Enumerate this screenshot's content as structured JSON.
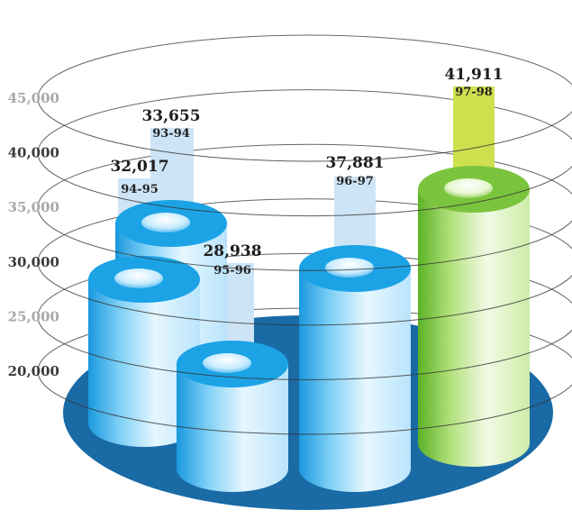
{
  "chart_data": {
    "type": "bar",
    "categories": [
      "93-94",
      "94-95",
      "95-96",
      "96-97",
      "97-98"
    ],
    "values": [
      33655,
      32017,
      28938,
      37881,
      41911
    ],
    "value_labels": [
      "33,655",
      "32,017",
      "28,938",
      "37,881",
      "41,911"
    ],
    "yticks": [
      "45,000",
      "40,000",
      "35,000",
      "30,000",
      "25,000",
      "20,000"
    ],
    "ylim": [
      20000,
      45000
    ],
    "title": "",
    "xlabel": "",
    "ylabel": "",
    "grid": true,
    "highlight_category": "97-98"
  },
  "colors": {
    "base_disc": "#1a6aa6",
    "bar_blue": "#1ba3e6",
    "bar_blue_light": "#d4f0ff",
    "bar_green": "#7bc43d",
    "bar_green_light": "#dff3c6",
    "label_panel_blue": "#cde4f6",
    "label_panel_green": "#cfe04f",
    "ring_line": "#333333",
    "tick_dark": "#3a3a3a",
    "tick_light": "#a8a8a8"
  }
}
